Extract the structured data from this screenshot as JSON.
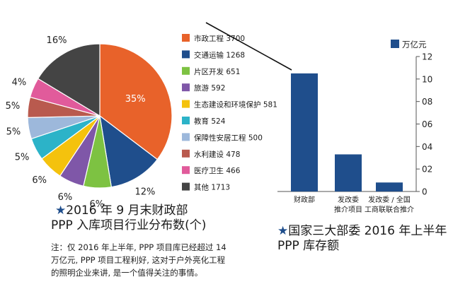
{
  "colors": {
    "background": "#ffffff",
    "bar": "#1f4e8c",
    "star": "#1f4e8c",
    "connector": "#111111"
  },
  "pie_caption": {
    "star": "★",
    "line1": "2016 年 9 月末财政部",
    "line2": "PPP 入库项目行业分布数(个)"
  },
  "note": {
    "line1": "注：仅 2016 年上半年, PPP 项目库已经超过 14",
    "line2": "万亿元, PPP 项目工程利好, 这对于户外亮化工程",
    "line3": "的照明企业来讲, 是一个值得关注的事情。"
  },
  "bar_caption": {
    "star": "★",
    "line1": "国家三大部委 2016 年上半年",
    "line2": "PPP 库存额"
  },
  "chart_data": [
    {
      "type": "pie",
      "title": "2016 年 9 月末财政部 PPP 入库项目行业分布数(个)",
      "start": "12 o'clock, clockwise",
      "slices": [
        {
          "name": "市政工程",
          "value": 3700,
          "percent_label": "35%",
          "color": "#e8622a",
          "legend": "市政工程 3700"
        },
        {
          "name": "交通运输",
          "value": 1268,
          "percent_label": "12%",
          "color": "#1f4e8c",
          "legend": "交通运输 1268"
        },
        {
          "name": "片区开发",
          "value": 651,
          "percent_label": "6%",
          "color": "#7dc242",
          "legend": "片区开发 651"
        },
        {
          "name": "旅游",
          "value": 592,
          "percent_label": "6%",
          "color": "#7f57a8",
          "legend": "旅游 592"
        },
        {
          "name": "生态建设和环境保护",
          "value": 581,
          "percent_label": "6%",
          "color": "#f4c20d",
          "legend": "生态建设和环境保护 581"
        },
        {
          "name": "教育",
          "value": 524,
          "percent_label": "5%",
          "color": "#2cb3c8",
          "legend": "教育 524"
        },
        {
          "name": "保障性安居工程",
          "value": 500,
          "percent_label": "5%",
          "color": "#9db8db",
          "legend": "保障性安居工程 500"
        },
        {
          "name": "水利建设",
          "value": 478,
          "percent_label": "5%",
          "color": "#b95a4e",
          "legend": "水利建设 478"
        },
        {
          "name": "医疗卫生",
          "value": 466,
          "percent_label": "4%",
          "color": "#e15b9b",
          "legend": "医疗卫生 466"
        },
        {
          "name": "其他",
          "value": 1713,
          "percent_label": "16%",
          "color": "#444444",
          "legend": "其他 1713"
        }
      ]
    },
    {
      "type": "bar",
      "title": "国家三大部委 2016 年上半年 PPP 库存额",
      "legend": "万亿元",
      "categories": [
        {
          "line1": "财政部",
          "line2": ""
        },
        {
          "line1": "发改委",
          "line2": "推介项目"
        },
        {
          "line1": "发改委 / 全国",
          "line2": "工商联联合推介"
        }
      ],
      "values": [
        10.5,
        3.3,
        0.8
      ],
      "ylim": [
        0,
        12
      ],
      "yticks": [
        "0",
        "02",
        "04",
        "06",
        "08",
        "10",
        "12"
      ],
      "ytick_values": [
        0,
        2,
        4,
        6,
        8,
        10,
        12
      ]
    }
  ]
}
